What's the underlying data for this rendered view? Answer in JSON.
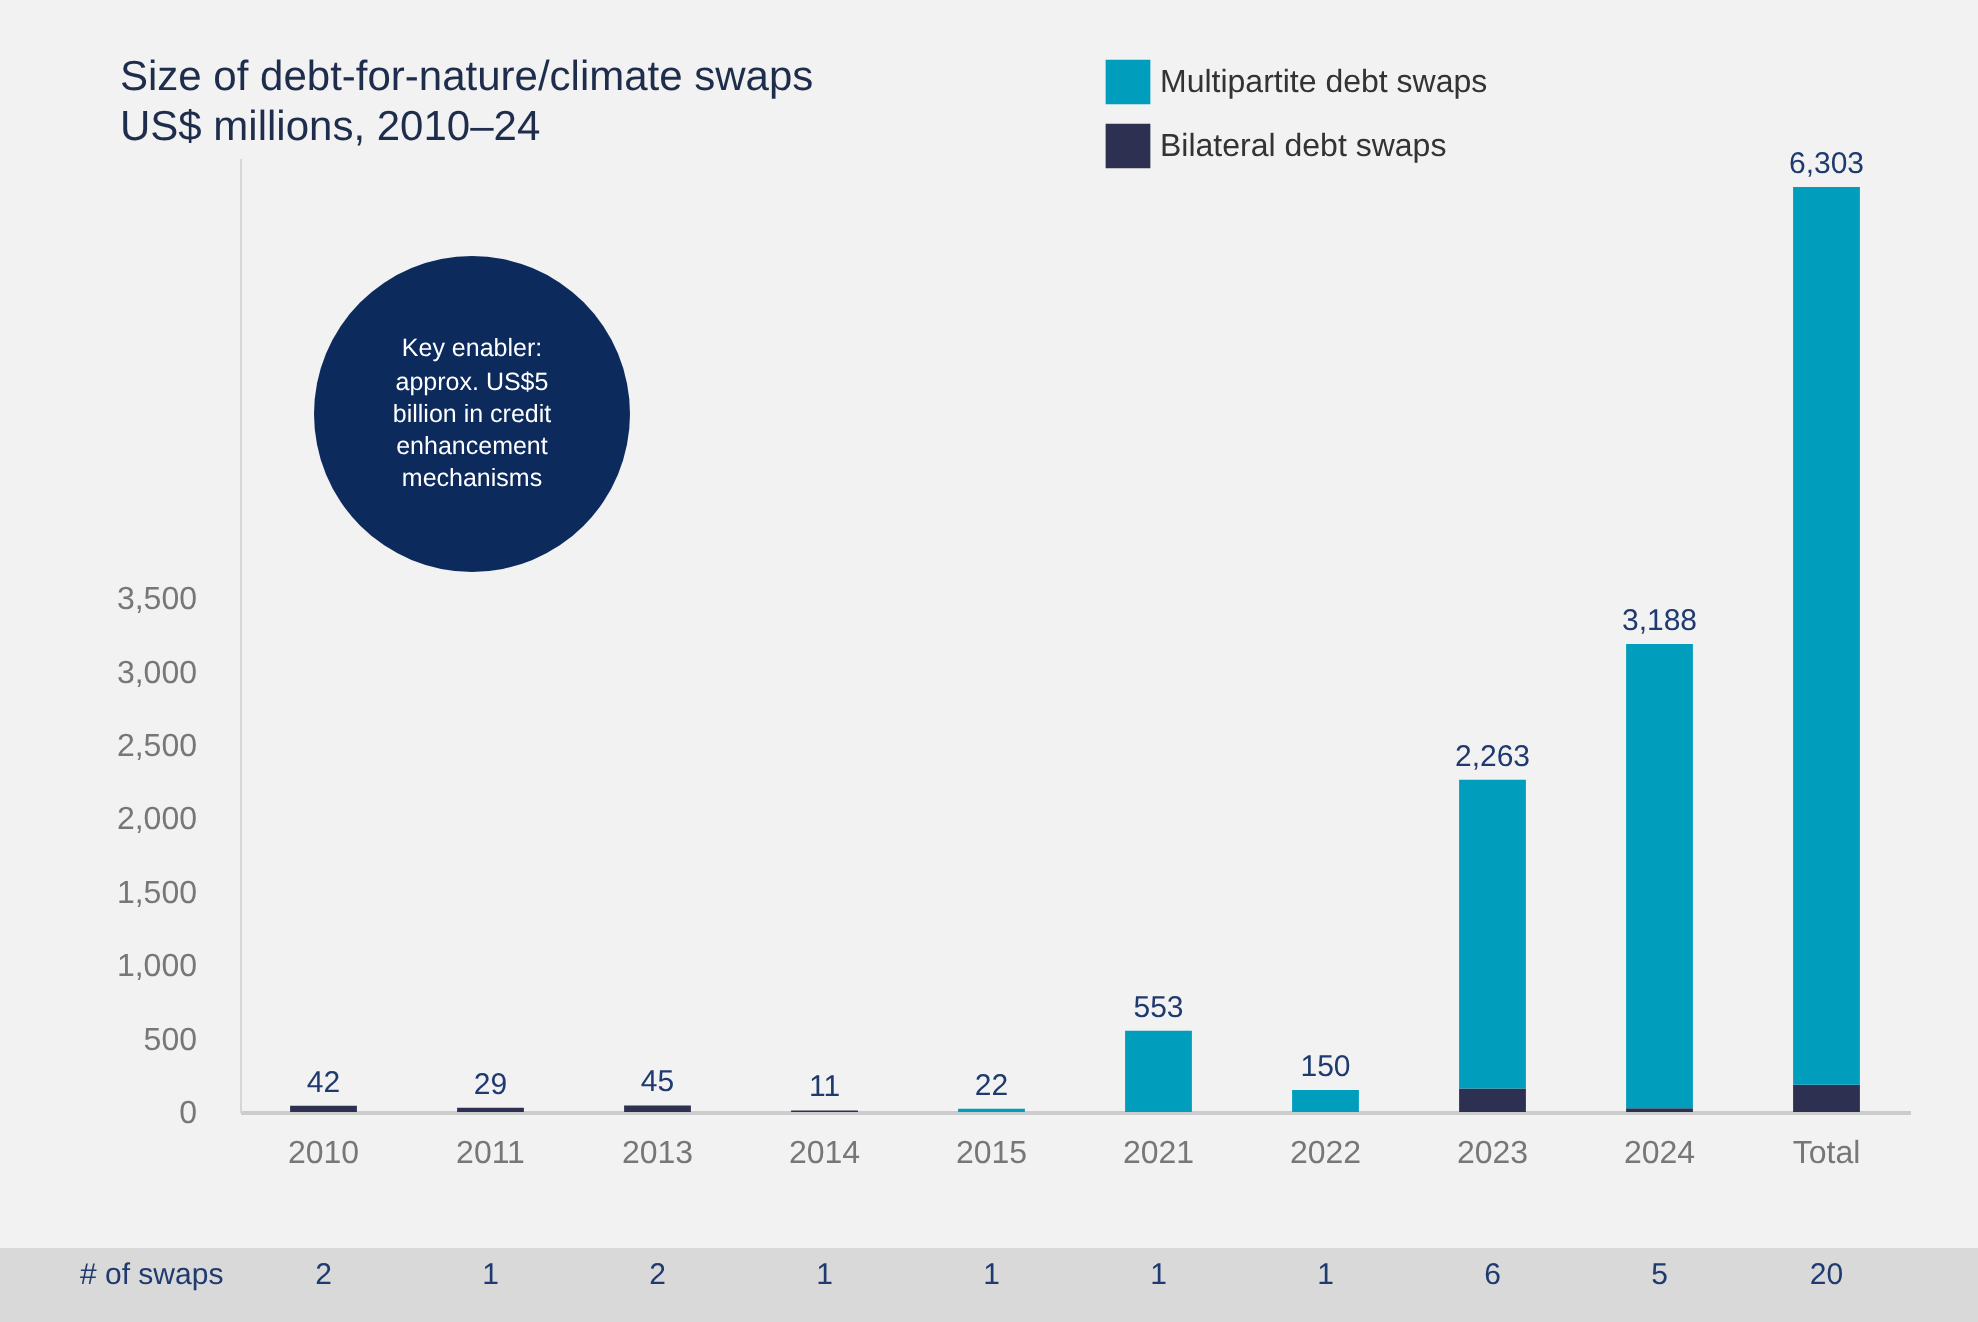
{
  "chart_data": {
    "type": "bar",
    "title": "Size of debt-for-nature/climate swaps",
    "subtitle": "US$ millions, 2010–24",
    "categories": [
      "2010",
      "2011",
      "2013",
      "2014",
      "2015",
      "2021",
      "2022",
      "2023",
      "2024",
      "Total"
    ],
    "stacked": true,
    "series": [
      {
        "name": "Bilateral debt swaps",
        "color": "#2d3050",
        "values": [
          42,
          29,
          45,
          11,
          null,
          null,
          null,
          160,
          25,
          185
        ]
      },
      {
        "name": "Multipartite debt swaps",
        "color": "#009dbd",
        "values": [
          null,
          null,
          null,
          null,
          22,
          553,
          150,
          2103,
          3163,
          6118
        ]
      }
    ],
    "totals": [
      "42",
      "29",
      "45",
      "11",
      "22",
      "553",
      "150",
      "2,263",
      "3,188",
      "6,303"
    ],
    "ylim": [
      0,
      6500
    ],
    "yticks": [
      0,
      500,
      {
        "value": 1000,
        "label": "1,000"
      },
      {
        "value": 1500,
        "label": "1,500"
      },
      {
        "value": 2000,
        "label": "2,000"
      },
      {
        "value": 2500,
        "label": "2,500"
      },
      {
        "value": 3000,
        "label": "3,000"
      },
      {
        "value": 3500,
        "label": "3,500"
      }
    ],
    "legend": "top right",
    "grid": false,
    "annotations": [
      "Key enabler: approx. US$5 billion in credit enhancement mechanisms",
      "# of swaps",
      "2",
      "1",
      "2",
      "1",
      "1",
      "1",
      "1",
      "6",
      "5",
      "20"
    ]
  }
}
